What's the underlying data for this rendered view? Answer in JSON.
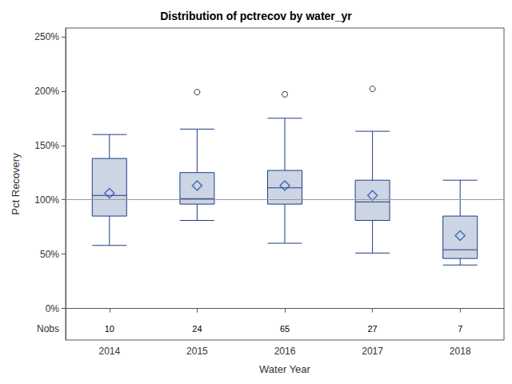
{
  "chart_data": {
    "type": "boxplot",
    "title": "Distribution of pctrecov by water_yr",
    "x_label": "Water Year",
    "y_label": "Pct Recovery",
    "categories": [
      "2014",
      "2015",
      "2016",
      "2017",
      "2018"
    ],
    "boxes": [
      [
        58,
        85,
        104,
        138,
        160
      ],
      [
        81,
        96,
        101,
        125,
        165
      ],
      [
        60,
        96,
        111,
        127,
        175
      ],
      [
        51,
        81,
        98,
        118,
        163
      ],
      [
        40,
        46,
        54,
        85,
        118
      ]
    ],
    "means": [
      106,
      113,
      113,
      104,
      67
    ],
    "outliers": [
      [],
      [
        199
      ],
      [
        197
      ],
      [
        202
      ],
      []
    ],
    "nobs_label": "Nobs",
    "nobs": [
      10,
      24,
      65,
      27,
      7
    ],
    "reference_line": 100,
    "ylim": [
      -29,
      258
    ],
    "yticks": [
      {
        "value": 0,
        "label": "0%"
      },
      {
        "value": 50,
        "label": "50%"
      },
      {
        "value": 100,
        "label": "100%"
      },
      {
        "value": 150,
        "label": "150%"
      },
      {
        "value": 200,
        "label": "200%"
      },
      {
        "value": 250,
        "label": "250%"
      }
    ],
    "grid": false,
    "color": "#cbd5e3",
    "marker": "diamond"
  }
}
